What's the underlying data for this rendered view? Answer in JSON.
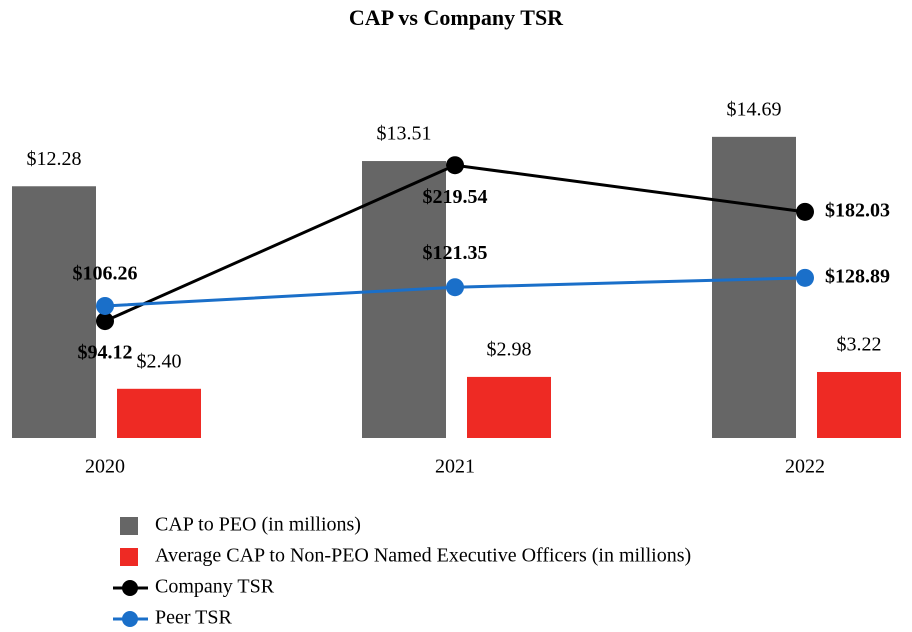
{
  "chart_data": {
    "type": "bar_line",
    "title": "CAP vs Company TSR",
    "categories": [
      "2020",
      "2021",
      "2022"
    ],
    "ylim": [
      0,
      18
    ],
    "y2lim": [
      0,
      297
    ],
    "series": [
      {
        "name": "CAP to PEO (in millions)",
        "type": "bar",
        "color": "#666666",
        "values": [
          12.28,
          13.51,
          14.69
        ],
        "value_labels": [
          "$12.28",
          "$13.51",
          "$14.69"
        ]
      },
      {
        "name": "Average CAP to Non-PEO Named Executive Officers (in millions)",
        "type": "bar",
        "color": "#ee2a24",
        "values": [
          2.4,
          2.98,
          3.22
        ],
        "value_labels": [
          "$2.40",
          "$2.98",
          "$3.22"
        ]
      },
      {
        "name": "Company TSR",
        "type": "line",
        "axis": "y2",
        "color": "#000000",
        "values": [
          94.12,
          219.54,
          182.03
        ],
        "value_labels": [
          "$94.12",
          "$219.54",
          "$182.03"
        ]
      },
      {
        "name": "Peer TSR",
        "type": "line",
        "axis": "y2",
        "color": "#1a6fc9",
        "values": [
          106.26,
          121.35,
          128.89
        ],
        "value_labels": [
          "$106.26",
          "$121.35",
          "$128.89"
        ]
      }
    ]
  }
}
